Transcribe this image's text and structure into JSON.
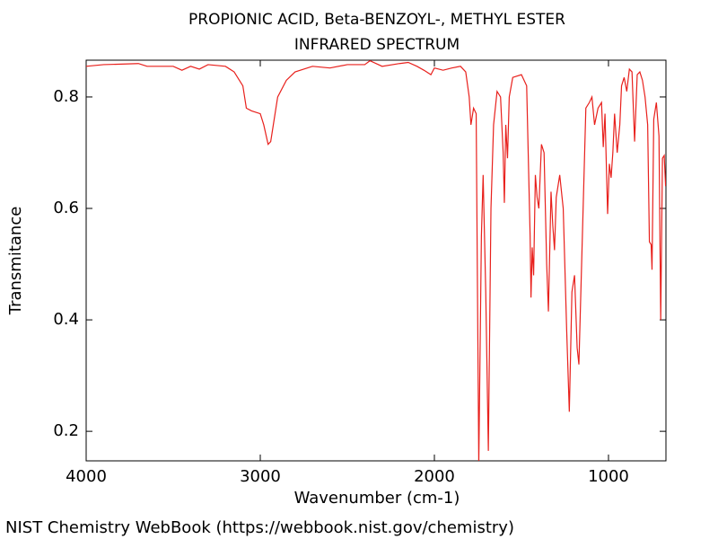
{
  "chart_data": {
    "type": "line",
    "title": "PROPIONIC ACID, Beta-BENZOYL-, METHYL ESTER",
    "subtitle": "INFRARED SPECTRUM",
    "x_label": "Wavenumber (cm-1)",
    "y_label": "Transmitance",
    "source": "NIST Chemistry WebBook (https://webbook.nist.gov/chemistry)",
    "color": "#e8201c",
    "xlim": [
      4000,
      670
    ],
    "ylim": [
      0.147,
      0.866
    ],
    "xticks": [
      4000,
      3000,
      2000,
      1000
    ],
    "yticks": [
      0.2,
      0.4,
      0.6,
      0.8
    ],
    "x": [
      4000,
      3900,
      3700,
      3650,
      3500,
      3450,
      3400,
      3350,
      3300,
      3200,
      3150,
      3100,
      3080,
      3050,
      3000,
      2980,
      2955,
      2940,
      2920,
      2900,
      2850,
      2800,
      2700,
      2600,
      2500,
      2400,
      2370,
      2300,
      2200,
      2150,
      2100,
      2060,
      2020,
      2000,
      1950,
      1900,
      1850,
      1820,
      1800,
      1790,
      1775,
      1760,
      1745,
      1730,
      1720,
      1705,
      1690,
      1675,
      1660,
      1640,
      1620,
      1605,
      1598,
      1590,
      1580,
      1570,
      1550,
      1500,
      1470,
      1450,
      1445,
      1438,
      1430,
      1420,
      1410,
      1400,
      1385,
      1370,
      1355,
      1345,
      1330,
      1320,
      1310,
      1300,
      1280,
      1260,
      1240,
      1225,
      1210,
      1195,
      1180,
      1170,
      1150,
      1130,
      1110,
      1095,
      1080,
      1060,
      1040,
      1030,
      1020,
      1005,
      995,
      985,
      975,
      965,
      950,
      935,
      925,
      910,
      895,
      880,
      865,
      850,
      835,
      820,
      805,
      790,
      775,
      765,
      755,
      750,
      740,
      725,
      710,
      700,
      690,
      680,
      672
    ],
    "values": [
      0.855,
      0.858,
      0.86,
      0.855,
      0.855,
      0.848,
      0.855,
      0.85,
      0.858,
      0.855,
      0.845,
      0.82,
      0.78,
      0.775,
      0.77,
      0.75,
      0.715,
      0.72,
      0.76,
      0.8,
      0.83,
      0.845,
      0.855,
      0.852,
      0.858,
      0.858,
      0.865,
      0.855,
      0.86,
      0.862,
      0.855,
      0.848,
      0.84,
      0.852,
      0.848,
      0.852,
      0.855,
      0.845,
      0.8,
      0.75,
      0.78,
      0.77,
      0.14,
      0.55,
      0.66,
      0.45,
      0.165,
      0.6,
      0.75,
      0.81,
      0.8,
      0.7,
      0.61,
      0.75,
      0.69,
      0.8,
      0.835,
      0.84,
      0.82,
      0.55,
      0.44,
      0.53,
      0.48,
      0.66,
      0.62,
      0.6,
      0.715,
      0.7,
      0.5,
      0.415,
      0.63,
      0.57,
      0.525,
      0.62,
      0.66,
      0.6,
      0.38,
      0.235,
      0.45,
      0.48,
      0.35,
      0.32,
      0.55,
      0.78,
      0.79,
      0.8,
      0.75,
      0.78,
      0.79,
      0.71,
      0.77,
      0.59,
      0.68,
      0.655,
      0.7,
      0.77,
      0.7,
      0.75,
      0.82,
      0.835,
      0.81,
      0.85,
      0.845,
      0.72,
      0.84,
      0.845,
      0.83,
      0.8,
      0.75,
      0.54,
      0.535,
      0.49,
      0.76,
      0.79,
      0.73,
      0.4,
      0.69,
      0.695,
      0.64
    ]
  }
}
